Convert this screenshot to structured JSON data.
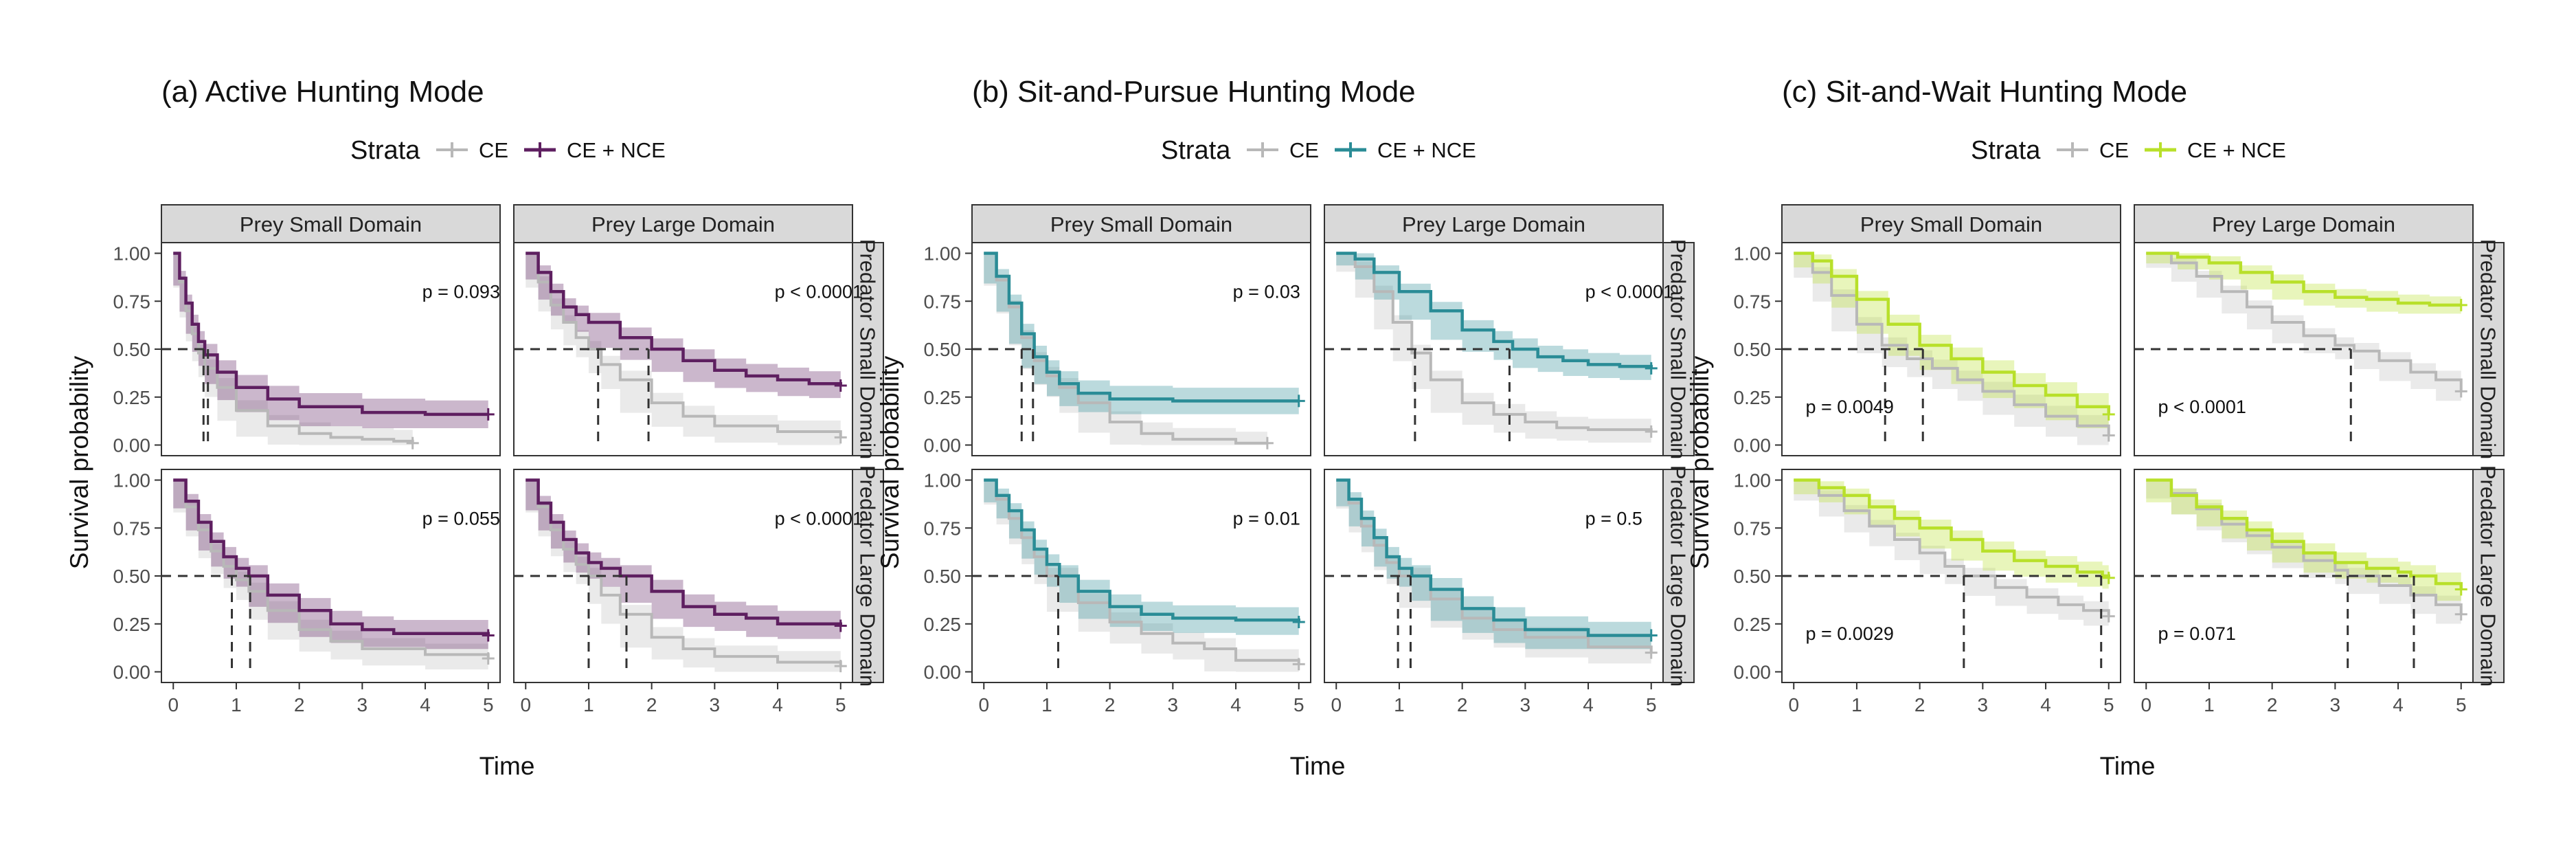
{
  "colors": {
    "ce": "#b8b8b8",
    "ce_band": "#e6e6e6",
    "nce_a": "#5e1f60",
    "nce_b": "#2a8c96",
    "nce_c": "#b8e02a",
    "strip_fill": "#d9d9d9",
    "panel_border": "#333333",
    "median_line": "#333333"
  },
  "shared": {
    "ylabel": "Survival probability",
    "xlabel": "Time",
    "legend_title": "Strata",
    "legend_ce": "CE",
    "legend_nce": "CE + NCE",
    "col_strips": [
      "Prey Small Domain",
      "Prey Large Domain"
    ],
    "row_strips": [
      "Predator Small Domain",
      "Predator Large Domain"
    ],
    "x_ticks": [
      "0",
      "1",
      "2",
      "3",
      "4",
      "5"
    ],
    "y_ticks": [
      "0.00",
      "0.25",
      "0.50",
      "0.75",
      "1.00"
    ]
  },
  "chart_data": [
    {
      "type": "line",
      "title": "(a) Active Hunting Mode",
      "nce_color_key": "nce_a",
      "xlim": [
        0,
        5
      ],
      "ylim": [
        0,
        1
      ],
      "panels": [
        {
          "row": 0,
          "col": 0,
          "p_text": "p = 0.093",
          "p_pos": "top-right",
          "ce": {
            "t": [
              0,
              0.1,
              0.2,
              0.3,
              0.4,
              0.5,
              0.7,
              1,
              1.5,
              2,
              2.5,
              3,
              3.5,
              3.8
            ],
            "s": [
              1,
              0.85,
              0.7,
              0.58,
              0.48,
              0.4,
              0.3,
              0.18,
              0.1,
              0.06,
              0.04,
              0.03,
              0.02,
              0.01
            ]
          },
          "nce": {
            "t": [
              0,
              0.1,
              0.2,
              0.3,
              0.4,
              0.5,
              0.7,
              1,
              1.5,
              2,
              3,
              4,
              5
            ],
            "s": [
              1,
              0.87,
              0.74,
              0.63,
              0.54,
              0.47,
              0.38,
              0.3,
              0.24,
              0.2,
              0.17,
              0.16,
              0.16
            ]
          },
          "median_x": [
            0.48,
            0.55
          ]
        },
        {
          "row": 0,
          "col": 1,
          "p_text": "p < 0.0001",
          "p_pos": "top-right",
          "ce": {
            "t": [
              0,
              0.2,
              0.4,
              0.6,
              0.8,
              1,
              1.2,
              1.5,
              2,
              2.5,
              3,
              4,
              5
            ],
            "s": [
              1,
              0.85,
              0.73,
              0.64,
              0.56,
              0.5,
              0.42,
              0.34,
              0.22,
              0.15,
              0.1,
              0.07,
              0.04
            ]
          },
          "nce": {
            "t": [
              0,
              0.2,
              0.4,
              0.6,
              0.8,
              1,
              1.5,
              2,
              2.5,
              3,
              3.5,
              4,
              4.5,
              5
            ],
            "s": [
              1,
              0.9,
              0.8,
              0.72,
              0.68,
              0.64,
              0.56,
              0.5,
              0.44,
              0.39,
              0.36,
              0.34,
              0.32,
              0.31
            ]
          },
          "median_x": [
            1.15,
            1.95
          ]
        },
        {
          "row": 1,
          "col": 0,
          "p_text": "p = 0.055",
          "p_pos": "top-right",
          "ce": {
            "t": [
              0,
              0.2,
              0.4,
              0.6,
              0.8,
              1,
              1.2,
              1.5,
              2,
              2.5,
              3,
              4,
              5
            ],
            "s": [
              1,
              0.86,
              0.74,
              0.63,
              0.55,
              0.48,
              0.42,
              0.32,
              0.22,
              0.16,
              0.12,
              0.09,
              0.07
            ]
          },
          "nce": {
            "t": [
              0,
              0.2,
              0.4,
              0.6,
              0.8,
              1,
              1.2,
              1.5,
              2,
              2.5,
              3,
              3.5,
              4,
              5
            ],
            "s": [
              1,
              0.89,
              0.78,
              0.68,
              0.6,
              0.54,
              0.5,
              0.4,
              0.32,
              0.25,
              0.22,
              0.2,
              0.2,
              0.19
            ]
          },
          "median_x": [
            0.93,
            1.22
          ]
        },
        {
          "row": 1,
          "col": 1,
          "p_text": "p < 0.0001",
          "p_pos": "top-right",
          "ce": {
            "t": [
              0,
              0.2,
              0.4,
              0.6,
              0.8,
              1,
              1.2,
              1.5,
              2,
              2.5,
              3,
              4,
              5
            ],
            "s": [
              1,
              0.86,
              0.74,
              0.64,
              0.56,
              0.5,
              0.4,
              0.3,
              0.18,
              0.12,
              0.08,
              0.05,
              0.03
            ]
          },
          "nce": {
            "t": [
              0,
              0.2,
              0.4,
              0.6,
              0.8,
              1,
              1.2,
              1.5,
              2,
              2.5,
              3,
              3.5,
              4,
              5
            ],
            "s": [
              1,
              0.88,
              0.78,
              0.69,
              0.62,
              0.57,
              0.54,
              0.5,
              0.42,
              0.34,
              0.3,
              0.28,
              0.25,
              0.24
            ]
          },
          "median_x": [
            1.0,
            1.6
          ]
        }
      ]
    },
    {
      "type": "line",
      "title": "(b) Sit-and-Pursue Hunting Mode",
      "nce_color_key": "nce_b",
      "xlim": [
        0,
        5
      ],
      "ylim": [
        0,
        1
      ],
      "panels": [
        {
          "row": 0,
          "col": 0,
          "p_text": "p = 0.03",
          "p_pos": "top-right",
          "ce": {
            "t": [
              0,
              0.2,
              0.4,
              0.6,
              0.8,
              1,
              1.2,
              1.5,
              2,
              2.5,
              3,
              4,
              4.5
            ],
            "s": [
              1,
              0.86,
              0.72,
              0.56,
              0.44,
              0.36,
              0.3,
              0.22,
              0.12,
              0.06,
              0.03,
              0.01,
              0.01
            ]
          },
          "nce": {
            "t": [
              0,
              0.2,
              0.4,
              0.6,
              0.8,
              1,
              1.2,
              1.5,
              2,
              3,
              4,
              5
            ],
            "s": [
              1,
              0.88,
              0.74,
              0.58,
              0.46,
              0.38,
              0.32,
              0.27,
              0.24,
              0.23,
              0.23,
              0.23
            ]
          },
          "median_x": [
            0.6,
            0.78
          ]
        },
        {
          "row": 0,
          "col": 1,
          "p_text": "p < 0.0001",
          "p_pos": "top-right",
          "ce": {
            "t": [
              0,
              0.3,
              0.6,
              0.9,
              1.2,
              1.5,
              2,
              2.5,
              3,
              3.5,
              4,
              5
            ],
            "s": [
              1,
              0.93,
              0.8,
              0.64,
              0.48,
              0.34,
              0.22,
              0.16,
              0.12,
              0.09,
              0.08,
              0.07
            ]
          },
          "nce": {
            "t": [
              0,
              0.3,
              0.6,
              1,
              1.5,
              2,
              2.5,
              2.8,
              3.2,
              3.6,
              4,
              4.5,
              5
            ],
            "s": [
              1,
              0.97,
              0.9,
              0.8,
              0.7,
              0.6,
              0.54,
              0.5,
              0.46,
              0.44,
              0.42,
              0.41,
              0.4
            ]
          },
          "median_x": [
            1.25,
            2.75
          ]
        },
        {
          "row": 1,
          "col": 0,
          "p_text": "p = 0.01",
          "p_pos": "top-right",
          "ce": {
            "t": [
              0,
              0.2,
              0.4,
              0.6,
              0.8,
              1,
              1.5,
              2,
              2.5,
              3,
              3.5,
              4,
              5
            ],
            "s": [
              1,
              0.9,
              0.8,
              0.7,
              0.6,
              0.5,
              0.36,
              0.26,
              0.2,
              0.15,
              0.12,
              0.06,
              0.04
            ]
          },
          "nce": {
            "t": [
              0,
              0.2,
              0.4,
              0.6,
              0.8,
              1,
              1.2,
              1.5,
              2,
              2.5,
              3,
              4,
              5
            ],
            "s": [
              1,
              0.92,
              0.84,
              0.74,
              0.64,
              0.56,
              0.5,
              0.42,
              0.34,
              0.3,
              0.28,
              0.27,
              0.26
            ]
          },
          "median_x": [
            1.18
          ]
        },
        {
          "row": 1,
          "col": 1,
          "p_text": "p = 0.5",
          "p_pos": "top-right",
          "ce": {
            "t": [
              0,
              0.2,
              0.4,
              0.6,
              0.8,
              1,
              1.5,
              2,
              2.5,
              3,
              4,
              5
            ],
            "s": [
              1,
              0.88,
              0.76,
              0.66,
              0.57,
              0.5,
              0.38,
              0.28,
              0.22,
              0.18,
              0.13,
              0.1
            ]
          },
          "nce": {
            "t": [
              0,
              0.2,
              0.4,
              0.6,
              0.8,
              1,
              1.2,
              1.5,
              2,
              2.5,
              3,
              4,
              5
            ],
            "s": [
              1,
              0.9,
              0.8,
              0.7,
              0.6,
              0.54,
              0.5,
              0.43,
              0.33,
              0.27,
              0.22,
              0.19,
              0.19
            ]
          },
          "median_x": [
            0.98,
            1.18
          ]
        }
      ]
    },
    {
      "type": "line",
      "title": "(c) Sit-and-Wait Hunting Mode",
      "nce_color_key": "nce_c",
      "xlim": [
        0,
        5
      ],
      "ylim": [
        0,
        1
      ],
      "panels": [
        {
          "row": 0,
          "col": 0,
          "p_text": "p = 0.0049",
          "p_pos": "bottom-left",
          "ce": {
            "t": [
              0,
              0.3,
              0.6,
              1,
              1.4,
              1.8,
              2.2,
              2.6,
              3,
              3.5,
              4,
              4.5,
              5
            ],
            "s": [
              1,
              0.9,
              0.78,
              0.63,
              0.52,
              0.45,
              0.4,
              0.34,
              0.28,
              0.21,
              0.15,
              0.1,
              0.05
            ]
          },
          "nce": {
            "t": [
              0,
              0.3,
              0.6,
              1,
              1.5,
              2,
              2.5,
              3,
              3.5,
              4,
              4.5,
              5
            ],
            "s": [
              1,
              0.96,
              0.88,
              0.76,
              0.63,
              0.52,
              0.45,
              0.38,
              0.31,
              0.26,
              0.2,
              0.16
            ]
          },
          "median_x": [
            1.45,
            2.05
          ]
        },
        {
          "row": 0,
          "col": 1,
          "p_text": "p < 0.0001",
          "p_pos": "bottom-left",
          "ce": {
            "t": [
              0,
              0.4,
              0.8,
              1.2,
              1.6,
              2,
              2.5,
              3,
              3.3,
              3.7,
              4.2,
              4.6,
              5
            ],
            "s": [
              1,
              0.95,
              0.88,
              0.8,
              0.72,
              0.64,
              0.57,
              0.52,
              0.49,
              0.44,
              0.38,
              0.34,
              0.28
            ]
          },
          "nce": {
            "t": [
              0,
              0.5,
              1,
              1.5,
              2,
              2.5,
              3,
              3.5,
              4,
              4.5,
              5
            ],
            "s": [
              1,
              0.98,
              0.95,
              0.9,
              0.85,
              0.8,
              0.77,
              0.76,
              0.74,
              0.73,
              0.73
            ]
          },
          "median_x": [
            3.25
          ]
        },
        {
          "row": 1,
          "col": 0,
          "p_text": "p = 0.0029",
          "p_pos": "bottom-left",
          "ce": {
            "t": [
              0,
              0.4,
              0.8,
              1.2,
              1.6,
              2,
              2.4,
              2.7,
              3.2,
              3.7,
              4.2,
              4.6,
              5
            ],
            "s": [
              1,
              0.92,
              0.84,
              0.76,
              0.69,
              0.62,
              0.55,
              0.5,
              0.44,
              0.39,
              0.35,
              0.32,
              0.29
            ]
          },
          "nce": {
            "t": [
              0,
              0.4,
              0.8,
              1.2,
              1.6,
              2,
              2.5,
              3,
              3.5,
              4,
              4.5,
              4.9,
              5
            ],
            "s": [
              1,
              0.96,
              0.92,
              0.86,
              0.8,
              0.75,
              0.69,
              0.63,
              0.58,
              0.55,
              0.52,
              0.5,
              0.49
            ]
          },
          "median_x": [
            2.7,
            4.88
          ]
        },
        {
          "row": 1,
          "col": 1,
          "p_text": "p = 0.071",
          "p_pos": "bottom-left",
          "ce": {
            "t": [
              0,
              0.4,
              0.8,
              1.2,
              1.6,
              2,
              2.5,
              3,
              3.2,
              3.7,
              4.2,
              4.6,
              5
            ],
            "s": [
              1,
              0.93,
              0.85,
              0.77,
              0.71,
              0.65,
              0.58,
              0.53,
              0.5,
              0.45,
              0.4,
              0.35,
              0.3
            ]
          },
          "nce": {
            "t": [
              0,
              0.4,
              0.8,
              1.2,
              1.6,
              2,
              2.5,
              3,
              3.5,
              4,
              4.2,
              4.6,
              5
            ],
            "s": [
              1,
              0.92,
              0.86,
              0.8,
              0.74,
              0.68,
              0.62,
              0.57,
              0.54,
              0.52,
              0.5,
              0.46,
              0.43
            ]
          },
          "median_x": [
            3.2,
            4.25
          ]
        }
      ]
    }
  ]
}
